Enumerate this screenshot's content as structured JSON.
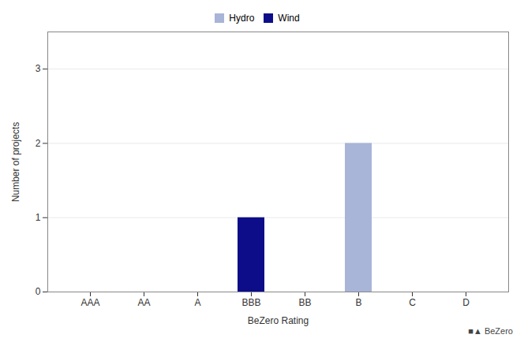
{
  "chart_data": {
    "type": "bar",
    "categories": [
      "AAA",
      "AA",
      "A",
      "BBB",
      "BB",
      "B",
      "C",
      "D"
    ],
    "series": [
      {
        "name": "Hydro",
        "color": "#a8b4d8",
        "values": [
          0,
          0,
          0,
          0,
          0,
          2,
          0,
          0
        ]
      },
      {
        "name": "Wind",
        "color": "#0d0d8a",
        "values": [
          0,
          0,
          0,
          1,
          0,
          0,
          0,
          0
        ]
      }
    ],
    "xlabel": "BeZero Rating",
    "ylabel": "Number of projects",
    "ylim": [
      0,
      3.5
    ],
    "yticks": [
      0,
      1,
      2,
      3
    ],
    "grid": true,
    "legend": "top",
    "annotations": [
      "■▲ BeZero"
    ]
  }
}
